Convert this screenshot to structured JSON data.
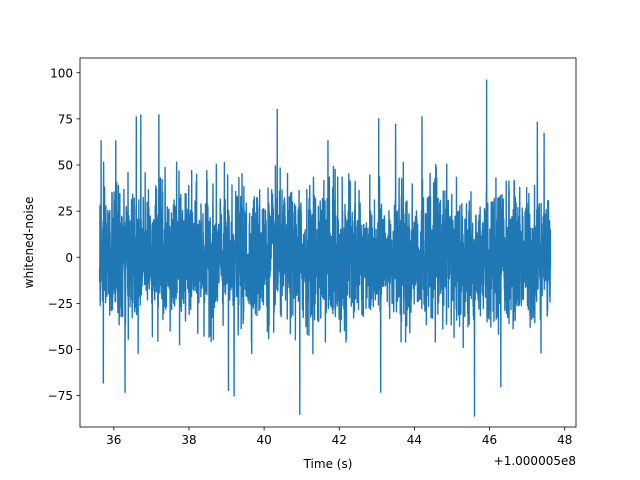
{
  "chart_data": {
    "type": "line",
    "title": "",
    "xlabel": "Time (s)",
    "ylabel": "whitened-noise",
    "x_offset_label": "+1.000005e8",
    "xlim": [
      35.1,
      48.3
    ],
    "ylim": [
      -92,
      108
    ],
    "x_ticks": [
      36,
      38,
      40,
      42,
      44,
      46,
      48
    ],
    "x_tick_labels": [
      "36",
      "38",
      "40",
      "42",
      "44",
      "46",
      "48"
    ],
    "y_ticks": [
      -75,
      -50,
      -25,
      0,
      25,
      50,
      75,
      100
    ],
    "y_tick_labels": [
      "−75",
      "−50",
      "−25",
      "0",
      "25",
      "50",
      "75",
      "100"
    ],
    "grid": false,
    "legend": "none",
    "series": [
      {
        "color": "#1f77b4",
        "x_range": [
          35.62,
          47.62
        ],
        "typical_envelope": [
          -45,
          45
        ],
        "notable_points": [
          {
            "x": 35.66,
            "y": 63
          },
          {
            "x": 35.72,
            "y": -68
          },
          {
            "x": 36.05,
            "y": 63
          },
          {
            "x": 36.3,
            "y": -73
          },
          {
            "x": 36.6,
            "y": 76
          },
          {
            "x": 36.72,
            "y": 77
          },
          {
            "x": 37.2,
            "y": 77
          },
          {
            "x": 39.05,
            "y": -72
          },
          {
            "x": 39.2,
            "y": -75
          },
          {
            "x": 40.35,
            "y": 80
          },
          {
            "x": 40.95,
            "y": -85
          },
          {
            "x": 41.7,
            "y": 63
          },
          {
            "x": 43.05,
            "y": 75
          },
          {
            "x": 43.1,
            "y": -73
          },
          {
            "x": 43.5,
            "y": 72
          },
          {
            "x": 44.2,
            "y": 76
          },
          {
            "x": 45.6,
            "y": -86
          },
          {
            "x": 45.92,
            "y": 96
          },
          {
            "x": 46.3,
            "y": -70
          },
          {
            "x": 47.27,
            "y": 73
          },
          {
            "x": 47.45,
            "y": 67
          }
        ]
      }
    ]
  }
}
